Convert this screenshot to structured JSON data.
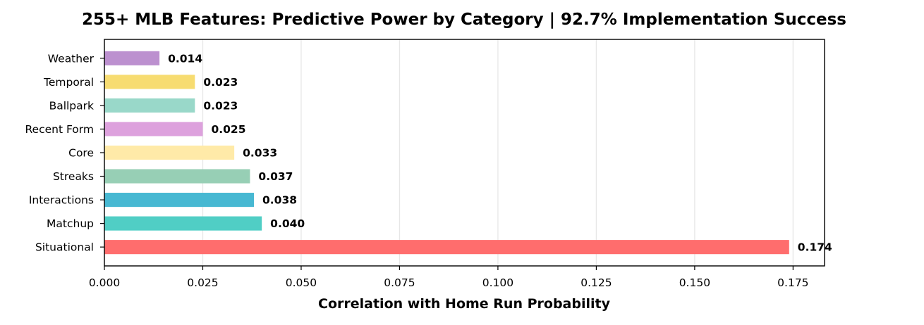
{
  "chart_data": {
    "type": "bar",
    "orientation": "horizontal",
    "title": "255+ MLB Features: Predictive Power by Category | 92.7% Implementation Success",
    "xlabel": "Correlation with Home Run Probability",
    "ylabel": "",
    "categories": [
      "Situational",
      "Matchup",
      "Interactions",
      "Streaks",
      "Core",
      "Recent Form",
      "Ballpark",
      "Temporal",
      "Weather"
    ],
    "values": [
      0.174,
      0.04,
      0.038,
      0.037,
      0.033,
      0.025,
      0.023,
      0.023,
      0.014
    ],
    "value_labels": [
      "0.174",
      "0.040",
      "0.038",
      "0.037",
      "0.033",
      "0.025",
      "0.023",
      "0.023",
      "0.014"
    ],
    "colors": [
      "#ff6b6b",
      "#4ecdc4",
      "#45b7d1",
      "#96ceb4",
      "#ffeaa7",
      "#dda0dd",
      "#98d8c8",
      "#f7dc6f",
      "#bb8fce"
    ],
    "xlim": [
      0,
      0.183
    ],
    "xticks": [
      0.0,
      0.025,
      0.05,
      0.075,
      0.1,
      0.125,
      0.15,
      0.175
    ],
    "xtick_labels": [
      "0.000",
      "0.025",
      "0.050",
      "0.075",
      "0.100",
      "0.125",
      "0.150",
      "0.175"
    ],
    "grid": "x-axis only, light gray"
  }
}
